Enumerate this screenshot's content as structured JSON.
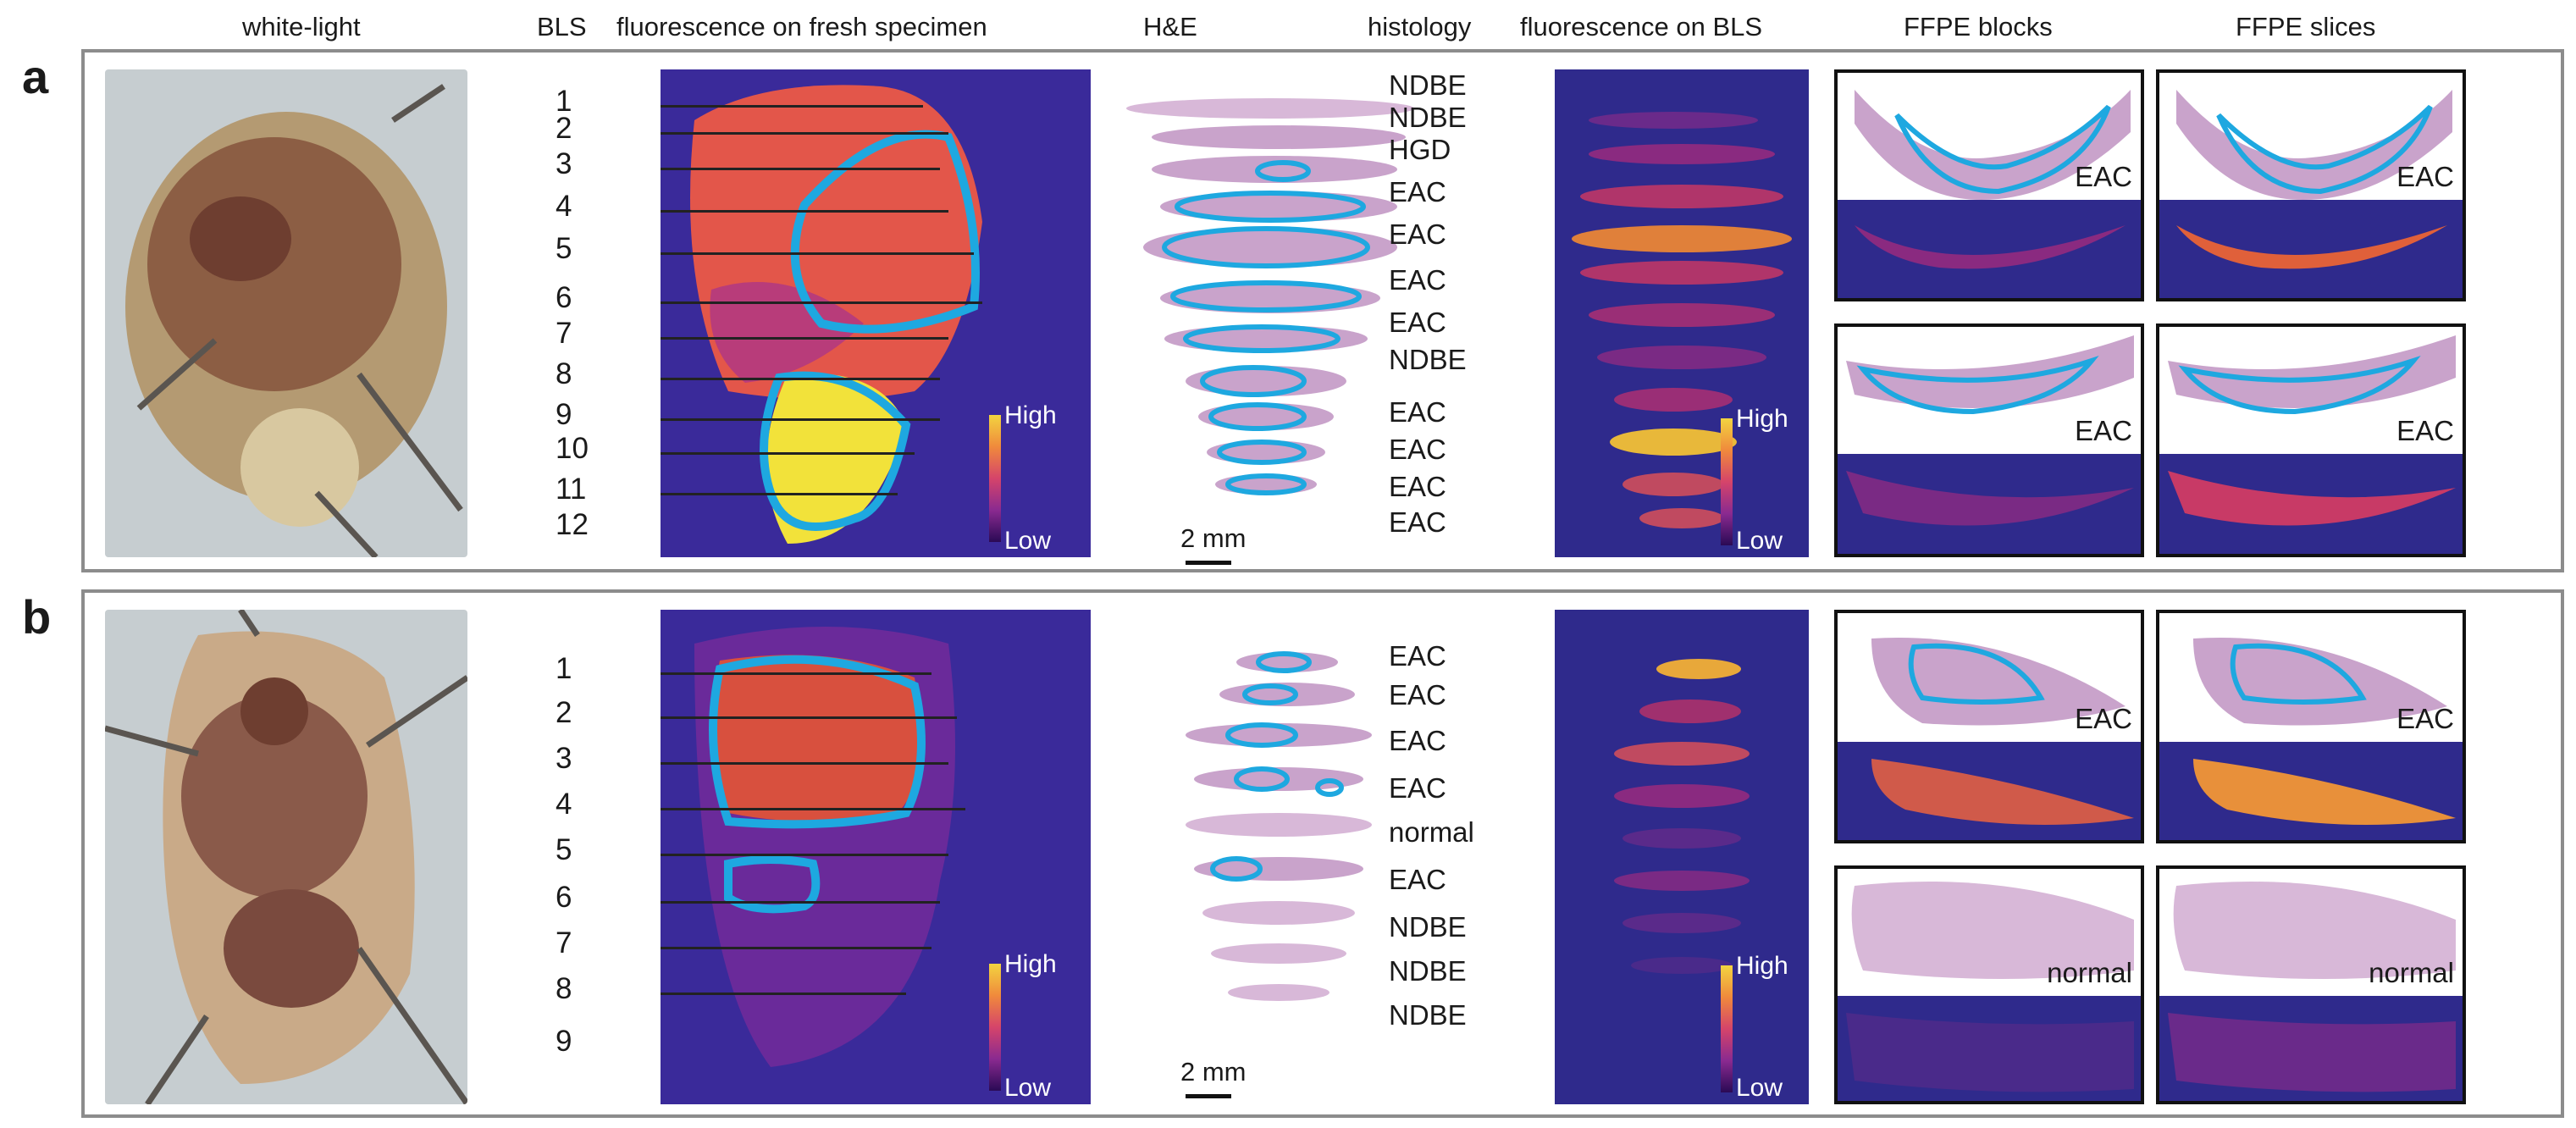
{
  "headers": {
    "white_light": "white-light",
    "bls": "BLS",
    "fluor_fresh": "fluorescence on fresh specimen",
    "he": "H&E",
    "histology": "histology",
    "fluor_bls": "fluorescence on BLS",
    "ffpe_blocks": "FFPE blocks",
    "ffpe_slices": "FFPE slices"
  },
  "colorbar": {
    "high": "High",
    "low": "Low"
  },
  "scale_bar": "2 mm",
  "panel_a": {
    "label": "a",
    "bls_numbers": [
      "1",
      "2",
      "3",
      "4",
      "5",
      "6",
      "7",
      "8",
      "9",
      "10",
      "11",
      "12"
    ],
    "histology": [
      "NDBE",
      "NDBE",
      "HGD",
      "EAC",
      "EAC",
      "EAC",
      "EAC",
      "NDBE",
      "EAC",
      "EAC",
      "EAC",
      "EAC"
    ],
    "ffpe_labels": [
      "EAC",
      "EAC",
      "EAC",
      "EAC"
    ]
  },
  "panel_b": {
    "label": "b",
    "bls_numbers": [
      "1",
      "2",
      "3",
      "4",
      "5",
      "6",
      "7",
      "8",
      "9"
    ],
    "histology": [
      "EAC",
      "EAC",
      "EAC",
      "EAC",
      "normal",
      "EAC",
      "NDBE",
      "NDBE",
      "NDBE"
    ],
    "ffpe_labels": [
      "EAC",
      "EAC",
      "normal",
      "normal"
    ]
  },
  "colors": {
    "outline": "#1ea8e0",
    "fluor_bg": "#3a2a9a",
    "frame": "#8c8c8c"
  }
}
